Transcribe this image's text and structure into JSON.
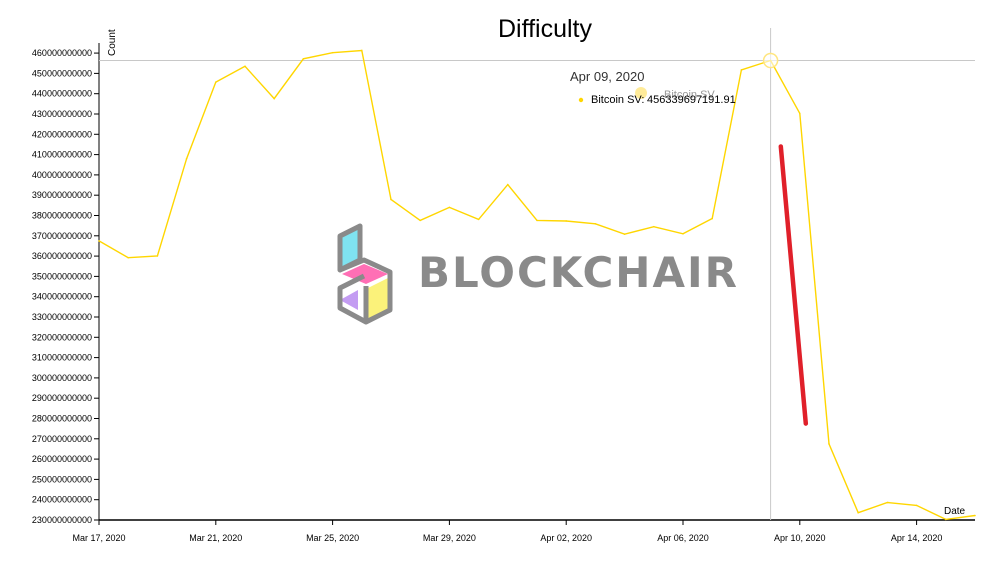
{
  "colors": {
    "series": "#ffd600",
    "annotation": "#e0202a",
    "crosshair": "#c8c8c8",
    "axis": "#000000",
    "watermark_outline": "#8a8a8a",
    "watermark_cyan": "#7fe3f0",
    "watermark_pink": "#ff6fb5",
    "watermark_purple": "#c39cf2",
    "watermark_yellow": "#fbf27a"
  },
  "watermark": {
    "text": "BLOCKCHAIR",
    "icon": "blockchair-logo-icon"
  },
  "tooltip": {
    "date": "Apr 09, 2020",
    "series_label": "Bitcoin SV:",
    "value_text": "456339697191.91",
    "ghost_text": "Bitcoin SV"
  },
  "chart_data": {
    "type": "line",
    "title": "Difficulty",
    "xlabel": "Date",
    "ylabel": "Count",
    "x_start": "2020-03-17",
    "x_ticks": [
      "Mar 17, 2020",
      "Mar 21, 2020",
      "Mar 25, 2020",
      "Mar 29, 2020",
      "Apr 02, 2020",
      "Apr 06, 2020",
      "Apr 10, 2020",
      "Apr 14, 2020"
    ],
    "y_ticks": [
      "230000000000",
      "240000000000",
      "250000000000",
      "260000000000",
      "270000000000",
      "280000000000",
      "290000000000",
      "300000000000",
      "310000000000",
      "320000000000",
      "330000000000",
      "340000000000",
      "350000000000",
      "360000000000",
      "370000000000",
      "380000000000",
      "390000000000",
      "400000000000",
      "410000000000",
      "420000000000",
      "430000000000",
      "440000000000",
      "450000000000",
      "460000000000"
    ],
    "ylim": [
      230000000000,
      463000000000
    ],
    "grid": false,
    "highlight_x": "Apr 09, 2020",
    "highlight_y": 456339697191.91,
    "series": [
      {
        "name": "Bitcoin SV",
        "x": [
          "Mar 17, 2020",
          "Mar 18, 2020",
          "Mar 19, 2020",
          "Mar 20, 2020",
          "Mar 21, 2020",
          "Mar 22, 2020",
          "Mar 23, 2020",
          "Mar 24, 2020",
          "Mar 25, 2020",
          "Mar 26, 2020",
          "Mar 27, 2020",
          "Mar 28, 2020",
          "Mar 29, 2020",
          "Mar 30, 2020",
          "Mar 31, 2020",
          "Apr 01, 2020",
          "Apr 02, 2020",
          "Apr 03, 2020",
          "Apr 04, 2020",
          "Apr 05, 2020",
          "Apr 06, 2020",
          "Apr 07, 2020",
          "Apr 08, 2020",
          "Apr 09, 2020",
          "Apr 10, 2020",
          "Apr 11, 2020",
          "Apr 12, 2020",
          "Apr 13, 2020",
          "Apr 14, 2020",
          "Apr 15, 2020",
          "Apr 16, 2020"
        ],
        "values": [
          367500000000,
          359200000000,
          360100000000,
          408000000000,
          445700000000,
          453500000000,
          437600000000,
          457200000000,
          460200000000,
          461300000000,
          387900000000,
          377600000000,
          384000000000,
          378100000000,
          395200000000,
          377600000000,
          377300000000,
          375900000000,
          370800000000,
          374500000000,
          371000000000,
          378500000000,
          451700000000,
          456339697191.91,
          430300000000,
          267500000000,
          233600000000,
          238600000000,
          237200000000,
          230300000000,
          232200000000
        ]
      }
    ],
    "annotation_stroke": {
      "color": "#e0202a",
      "from": {
        "x": "Apr 10, 2020",
        "y": 414000000000
      },
      "to": {
        "x": "Apr 10, 2020",
        "y": 277500000000
      }
    }
  }
}
